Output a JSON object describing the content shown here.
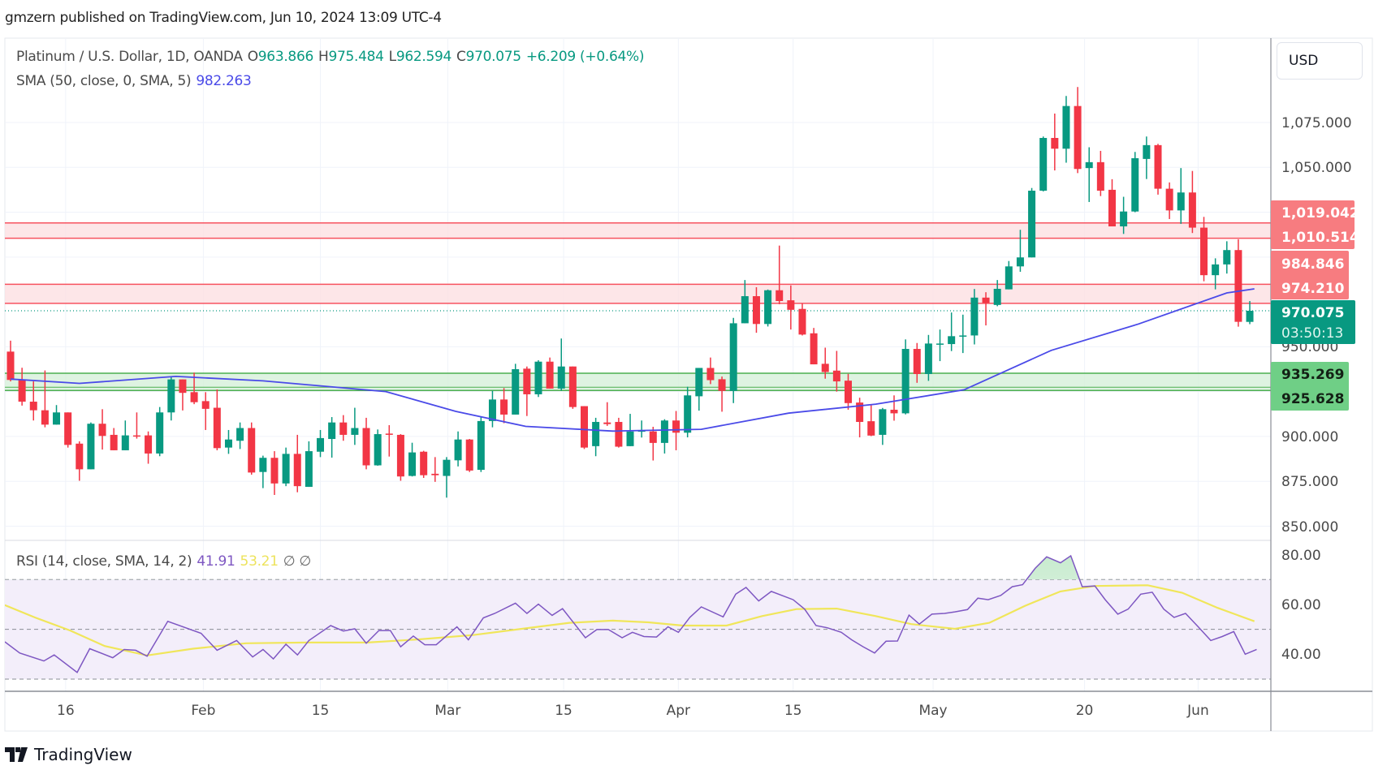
{
  "header": {
    "published": "gmzern published on TradingView.com, Jun 10, 2024 13:09 UTC-4"
  },
  "legend": {
    "symbol": "Platinum / U.S. Dollar, 1D, OANDA",
    "open_label": "O",
    "open": "963.866",
    "high_label": "H",
    "high": "975.484",
    "low_label": "L",
    "low": "962.594",
    "close_label": "C",
    "close": "970.075",
    "change": "+6.209 (+0.64%)",
    "sma_label": "SMA (50, close, 0, SMA, 5)",
    "sma_value": "982.263",
    "rsi_label": "RSI (14, close, SMA, 14, 2)",
    "rsi_value": "41.91",
    "rsi_sma_value": "53.21",
    "rsi_extra": "∅ ∅"
  },
  "currency_button": "USD",
  "price_axis_labels": [
    "1,075.000",
    "1,050.000",
    "950.000",
    "900.000",
    "875.000",
    "850.000"
  ],
  "price_tags": {
    "r1_top": "1,019.042",
    "r1_bottom": "1,010.514",
    "r2_top": "984.846",
    "r2_bottom": "974.210",
    "last_price": "970.075",
    "countdown": "03:50:13",
    "s_top": "935.269",
    "s_bottom": "925.628"
  },
  "rsi_axis_labels": [
    "80.00",
    "60.00",
    "40.00"
  ],
  "time_labels": [
    "16",
    "Feb",
    "15",
    "Mar",
    "15",
    "Apr",
    "15",
    "May",
    "20",
    "Jun"
  ],
  "logo_text": "TradingView",
  "colors": {
    "up": "#089981",
    "down": "#f23645",
    "sma": "#4a4ae8",
    "rsi": "#7e57c2",
    "rsi_sma": "#f0e65a",
    "resistance": "#f7525f",
    "support": "#4caf50"
  },
  "chart_data": {
    "type": "candlestick",
    "title": "Platinum / U.S. Dollar, 1D, OANDA",
    "ylim": [
      835,
      1110
    ],
    "yticks": [
      850,
      875,
      900,
      925,
      950,
      975,
      1000,
      1025,
      1050,
      1075
    ],
    "x_ticks": [
      {
        "label": "16",
        "bar": 4.8
      },
      {
        "label": "Feb",
        "bar": 16.8
      },
      {
        "label": "15",
        "bar": 27
      },
      {
        "label": "Mar",
        "bar": 38.1
      },
      {
        "label": "15",
        "bar": 48.2
      },
      {
        "label": "Apr",
        "bar": 58.2
      },
      {
        "label": "15",
        "bar": 68.2
      },
      {
        "label": "May",
        "bar": 80.4
      },
      {
        "label": "20",
        "bar": 93.6
      },
      {
        "label": "Jun",
        "bar": 103.5
      }
    ],
    "zones": [
      {
        "name": "resistance-1",
        "low": 1010.514,
        "high": 1019.042
      },
      {
        "name": "resistance-2",
        "low": 974.21,
        "high": 984.846
      },
      {
        "name": "support",
        "low": 925.628,
        "high": 935.269
      }
    ],
    "last_price": 970.075,
    "ohlc": [
      [
        947.3,
        953.4,
        930.7,
        931.5
      ],
      [
        931.5,
        938.3,
        917.2,
        919.4
      ],
      [
        919.4,
        930.7,
        908.9,
        914.6
      ],
      [
        914.6,
        936.8,
        905.1,
        906.6
      ],
      [
        906.6,
        917.5,
        906.6,
        913.4
      ],
      [
        913.4,
        913.4,
        893.8,
        895.3
      ],
      [
        896,
        897.3,
        875.3,
        881.7
      ],
      [
        881.7,
        907.8,
        881.7,
        907.1
      ],
      [
        907.1,
        915.2,
        892.7,
        900.3
      ],
      [
        900.9,
        904.7,
        892.3,
        892.3
      ],
      [
        892.3,
        908.9,
        892.3,
        900.6
      ],
      [
        900.6,
        913.4,
        898.8,
        900.3
      ],
      [
        900.6,
        902.8,
        884.8,
        890.5
      ],
      [
        890.5,
        916.4,
        889,
        913.4
      ],
      [
        913.4,
        933,
        908.9,
        931.8
      ],
      [
        931.8,
        931.8,
        914.5,
        924.3
      ],
      [
        924.7,
        935.6,
        918,
        919.1
      ],
      [
        919.7,
        924.7,
        903.6,
        915.4
      ],
      [
        916,
        926.2,
        892.3,
        893.5
      ],
      [
        893.8,
        903.6,
        890.3,
        898.3
      ],
      [
        897.6,
        907.8,
        893,
        904.7
      ],
      [
        904.7,
        907.8,
        878.7,
        879.9
      ],
      [
        880.2,
        889.3,
        871.2,
        888.1
      ],
      [
        888.1,
        891.8,
        867.4,
        873.8
      ],
      [
        873.8,
        893.8,
        872.3,
        890.3
      ],
      [
        890.3,
        900.9,
        868.9,
        872.3
      ],
      [
        871.9,
        897.3,
        871.9,
        891.8
      ],
      [
        891.5,
        903.6,
        888.5,
        899.1
      ],
      [
        898.6,
        910.8,
        888.2,
        907.8
      ],
      [
        907.8,
        911.9,
        897.6,
        900.9
      ],
      [
        900.9,
        916,
        895.3,
        904.7
      ],
      [
        904.7,
        910.4,
        881.7,
        883.9
      ],
      [
        883.9,
        903.9,
        883.7,
        901.3
      ],
      [
        901.6,
        906.3,
        888.8,
        900.9
      ],
      [
        900.9,
        901.3,
        875.3,
        877.7
      ],
      [
        878,
        896.5,
        877.7,
        891.1
      ],
      [
        891.5,
        892,
        876.9,
        878.4
      ],
      [
        879.2,
        888.5,
        874.7,
        878.4
      ],
      [
        878,
        888.5,
        865.9,
        887
      ],
      [
        886.7,
        902.8,
        883.3,
        898.3
      ],
      [
        898.3,
        898.6,
        880.2,
        881
      ],
      [
        881.4,
        911.1,
        880.2,
        908.6
      ],
      [
        908.6,
        925.5,
        905.1,
        920.6
      ],
      [
        920.6,
        927,
        907.4,
        912.2
      ],
      [
        912.2,
        940.5,
        912.2,
        937.5
      ],
      [
        937.8,
        939,
        911.4,
        923.5
      ],
      [
        923.5,
        942.5,
        922,
        941.7
      ],
      [
        941.7,
        944,
        926.7,
        926.7
      ],
      [
        926.7,
        954.6,
        925.5,
        939
      ],
      [
        939,
        939,
        915.4,
        916.4
      ],
      [
        916.9,
        916.9,
        893,
        893.8
      ],
      [
        894.6,
        910.4,
        889,
        908.1
      ],
      [
        907.8,
        919.1,
        905.9,
        906.9
      ],
      [
        908.1,
        910.4,
        893.8,
        894.3
      ],
      [
        894.6,
        912.6,
        894.6,
        902.8
      ],
      [
        902.8,
        908.9,
        899.4,
        903.3
      ],
      [
        902.8,
        905.4,
        886.6,
        896.4
      ],
      [
        896.4,
        909.6,
        890.5,
        908.9
      ],
      [
        908.9,
        914.2,
        892.3,
        902.1
      ],
      [
        902.1,
        927.7,
        899.5,
        922.9
      ],
      [
        922.4,
        938.2,
        914.4,
        938.2
      ],
      [
        938.2,
        944,
        929.2,
        931.4
      ],
      [
        931.9,
        933.4,
        913.8,
        925.4
      ],
      [
        925.4,
        966.1,
        918.6,
        963.1
      ],
      [
        963.1,
        987.2,
        963.1,
        978.2
      ],
      [
        978.2,
        983.2,
        957.8,
        962.7
      ],
      [
        962.7,
        981.9,
        961.3,
        981.5
      ],
      [
        981.5,
        1006.4,
        973.7,
        975.5
      ],
      [
        975.9,
        984.2,
        959.6,
        970.6
      ],
      [
        971.1,
        974.1,
        956.3,
        956.8
      ],
      [
        957.5,
        960.5,
        940.2,
        940.2
      ],
      [
        940.5,
        949.5,
        932.2,
        935.9
      ],
      [
        936.7,
        947.7,
        925,
        930.7
      ],
      [
        931.1,
        934.9,
        914.9,
        918.6
      ],
      [
        918.9,
        921.6,
        899.5,
        908.1
      ],
      [
        908.5,
        917.9,
        900.2,
        900.5
      ],
      [
        900.9,
        915.9,
        895.3,
        915.2
      ],
      [
        914.9,
        922.9,
        908.8,
        912.9
      ],
      [
        912.9,
        954.1,
        912.3,
        948.8
      ],
      [
        948.8,
        952.1,
        929.9,
        934.8
      ],
      [
        934.8,
        956.6,
        931,
        951.8
      ],
      [
        951.8,
        959.6,
        942,
        951.8
      ],
      [
        951.5,
        969.1,
        947.6,
        955.9
      ],
      [
        956.3,
        967.9,
        946.5,
        956.3
      ],
      [
        956.3,
        982.2,
        951.3,
        977.4
      ],
      [
        977.4,
        980.4,
        961.9,
        974.4
      ],
      [
        973.3,
        987.2,
        972.6,
        982.3
      ],
      [
        982,
        997.8,
        982,
        994.8
      ],
      [
        994.8,
        1015.2,
        991.8,
        999.8
      ],
      [
        999.8,
        1038.5,
        999.8,
        1037
      ],
      [
        1037,
        1067.2,
        1036.6,
        1066.4
      ],
      [
        1066.4,
        1080,
        1048.3,
        1060.4
      ],
      [
        1060.4,
        1089.8,
        1052.6,
        1084.2
      ],
      [
        1084.2,
        1094.8,
        1046.8,
        1049.1
      ],
      [
        1049.6,
        1061.2,
        1030.7,
        1052.9
      ],
      [
        1052.9,
        1059.2,
        1034,
        1037
      ],
      [
        1037.5,
        1043.4,
        1017.1,
        1017.1
      ],
      [
        1017.1,
        1033.6,
        1012.9,
        1025.4
      ],
      [
        1025.4,
        1058.6,
        1025,
        1055.1
      ],
      [
        1054.7,
        1067.2,
        1043.5,
        1062.4
      ],
      [
        1062.4,
        1063.1,
        1034.8,
        1038.1
      ],
      [
        1038.1,
        1041.6,
        1021.2,
        1026
      ],
      [
        1026,
        1049.6,
        1018.5,
        1036
      ],
      [
        1036,
        1048,
        1013.4,
        1016.4
      ],
      [
        1016.4,
        1022.4,
        986.5,
        989.9
      ],
      [
        989.9,
        999.3,
        982,
        995.9
      ],
      [
        995.9,
        1008.8,
        990.8,
        1003.9
      ],
      [
        1003.9,
        1009.9,
        961.2,
        963.9
      ],
      [
        963.866,
        975.484,
        962.594,
        970.075
      ]
    ],
    "sma50": [
      [
        0,
        932
      ],
      [
        6,
        929.6
      ],
      [
        14.4,
        933.5
      ],
      [
        22,
        931
      ],
      [
        32.7,
        925
      ],
      [
        38.8,
        914
      ],
      [
        44.9,
        905.6
      ],
      [
        52.5,
        903
      ],
      [
        60.2,
        904
      ],
      [
        67.8,
        913
      ],
      [
        75.4,
        918
      ],
      [
        83.1,
        926
      ],
      [
        90.7,
        948
      ],
      [
        98.3,
        962.7
      ],
      [
        106,
        980
      ],
      [
        108.4,
        982.3
      ]
    ],
    "rsi": {
      "ylim": [
        20,
        85
      ],
      "levels": [
        70,
        50,
        30
      ],
      "yticks": [
        80,
        60,
        40
      ],
      "values": [
        [
          -0.5,
          45
        ],
        [
          0.8,
          40.5
        ],
        [
          2.9,
          37.3
        ],
        [
          3.8,
          39.7
        ],
        [
          5.8,
          32.7
        ],
        [
          6.9,
          42.2
        ],
        [
          8.9,
          38.6
        ],
        [
          9.9,
          41.9
        ],
        [
          10.9,
          41.6
        ],
        [
          11.9,
          39.2
        ],
        [
          13.7,
          53.2
        ],
        [
          16.6,
          48.4
        ],
        [
          18,
          41.6
        ],
        [
          19.7,
          45.5
        ],
        [
          21.1,
          38.9
        ],
        [
          22,
          41.9
        ],
        [
          22.9,
          38.1
        ],
        [
          24,
          44
        ],
        [
          25,
          39.7
        ],
        [
          26,
          45.5
        ],
        [
          27.9,
          51.5
        ],
        [
          29,
          49.3
        ],
        [
          30,
          50.2
        ],
        [
          31,
          44.4
        ],
        [
          32.1,
          49.5
        ],
        [
          33.1,
          49.5
        ],
        [
          34,
          43
        ],
        [
          35.1,
          47.3
        ],
        [
          36.1,
          43.8
        ],
        [
          37.1,
          43.8
        ],
        [
          38.9,
          51
        ],
        [
          39.9,
          45.8
        ],
        [
          41.2,
          54.6
        ],
        [
          42.2,
          56.4
        ],
        [
          44,
          60.5
        ],
        [
          45,
          56.4
        ],
        [
          46,
          60.1
        ],
        [
          47.2,
          55.6
        ],
        [
          48.1,
          58.3
        ],
        [
          50.1,
          46.6
        ],
        [
          51.1,
          49.9
        ],
        [
          52.1,
          49.9
        ],
        [
          53.3,
          46.6
        ],
        [
          54.2,
          48.8
        ],
        [
          55.2,
          47.1
        ],
        [
          56.3,
          46.9
        ],
        [
          57.3,
          51
        ],
        [
          58.2,
          48.8
        ],
        [
          59.2,
          54.8
        ],
        [
          60.2,
          59
        ],
        [
          62.1,
          55
        ],
        [
          63.2,
          64.1
        ],
        [
          64.1,
          66.8
        ],
        [
          65.2,
          61.4
        ],
        [
          66.3,
          65.2
        ],
        [
          68.2,
          61.9
        ],
        [
          69.2,
          58.1
        ],
        [
          70.2,
          51.5
        ],
        [
          71.2,
          50.6
        ],
        [
          72.4,
          48.8
        ],
        [
          73.3,
          45.8
        ],
        [
          74.3,
          43
        ],
        [
          75.3,
          40.5
        ],
        [
          76.3,
          45.2
        ],
        [
          77.3,
          45.3
        ],
        [
          78.3,
          55.7
        ],
        [
          79.2,
          52.1
        ],
        [
          80.3,
          56.1
        ],
        [
          81.4,
          56.4
        ],
        [
          82.3,
          57
        ],
        [
          83.4,
          57.9
        ],
        [
          84.3,
          62.5
        ],
        [
          85.2,
          61.9
        ],
        [
          86.3,
          63.6
        ],
        [
          87.3,
          67.1
        ],
        [
          88.2,
          67.9
        ],
        [
          89.3,
          74.5
        ],
        [
          90.3,
          79.1
        ],
        [
          91.5,
          76.7
        ],
        [
          92.4,
          79.5
        ],
        [
          93.4,
          67.1
        ],
        [
          94.5,
          67.4
        ],
        [
          95.4,
          61.9
        ],
        [
          96.5,
          56.1
        ],
        [
          97.4,
          58.1
        ],
        [
          98.5,
          64.1
        ],
        [
          99.5,
          64.9
        ],
        [
          100.5,
          58.1
        ],
        [
          101.4,
          54.8
        ],
        [
          102.4,
          56.4
        ],
        [
          103.5,
          51
        ],
        [
          104.6,
          45.5
        ],
        [
          105.6,
          47.1
        ],
        [
          106.6,
          49.1
        ],
        [
          107.6,
          40
        ],
        [
          108.6,
          41.91
        ]
      ],
      "sma": [
        [
          -0.5,
          59.7
        ],
        [
          2.1,
          54.8
        ],
        [
          5.2,
          49.5
        ],
        [
          8.2,
          43.3
        ],
        [
          11.9,
          39.5
        ],
        [
          15.9,
          42.2
        ],
        [
          20.5,
          44.4
        ],
        [
          25.8,
          44.7
        ],
        [
          31.1,
          44.7
        ],
        [
          35.7,
          46
        ],
        [
          40.3,
          47.7
        ],
        [
          44.9,
          50.4
        ],
        [
          48.7,
          52.6
        ],
        [
          52.5,
          53.5
        ],
        [
          55.6,
          52.8
        ],
        [
          58.6,
          51.5
        ],
        [
          62.4,
          51.5
        ],
        [
          65.5,
          55.3
        ],
        [
          68.5,
          58.1
        ],
        [
          72,
          58.3
        ],
        [
          75.4,
          55.3
        ],
        [
          78.5,
          52.1
        ],
        [
          82.3,
          50.2
        ],
        [
          85.3,
          52.6
        ],
        [
          88.4,
          59.4
        ],
        [
          91.5,
          65.2
        ],
        [
          94.5,
          67.4
        ],
        [
          99.1,
          67.7
        ],
        [
          102.1,
          64.7
        ],
        [
          105.2,
          58.6
        ],
        [
          108.4,
          53.21
        ]
      ]
    }
  }
}
